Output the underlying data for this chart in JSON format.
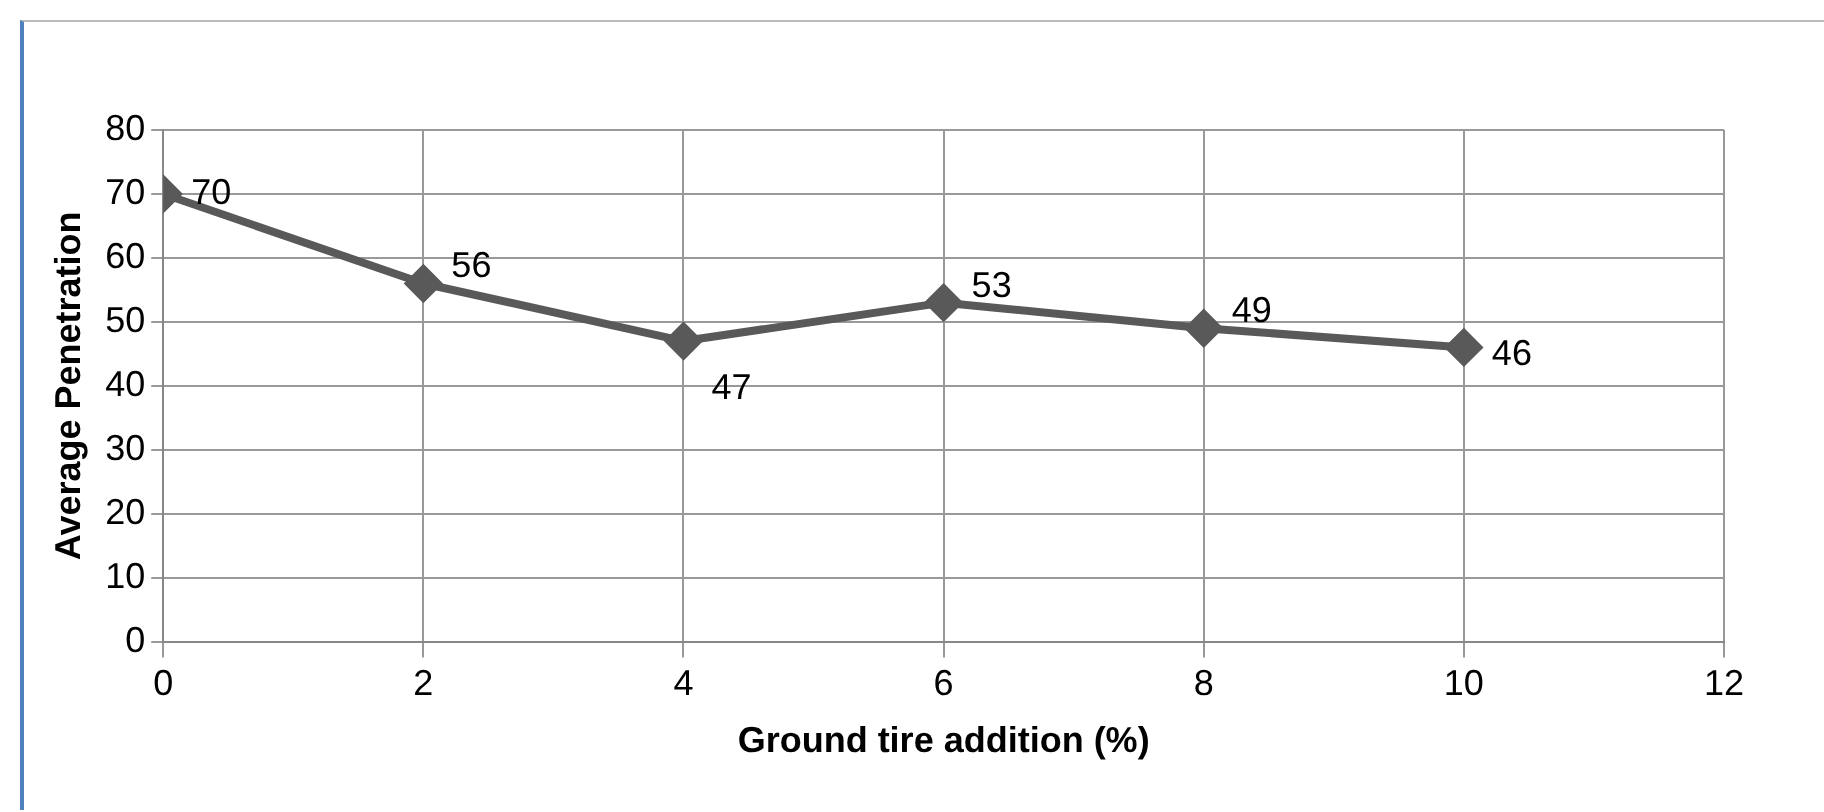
{
  "chart_data": {
    "type": "line",
    "xlabel": "Ground tire addition (%)",
    "ylabel": "Average Penetration",
    "x": [
      0,
      2,
      4,
      6,
      8,
      10
    ],
    "series": [
      {
        "color": "#595959",
        "values": [
          70,
          56,
          47,
          53,
          49,
          46
        ]
      }
    ],
    "xlim": [
      0,
      12
    ],
    "xticks": [
      0,
      2,
      4,
      6,
      8,
      10,
      12
    ],
    "ylim": [
      0,
      80
    ],
    "yticks": [
      0,
      10,
      20,
      30,
      40,
      50,
      60,
      70,
      80
    ],
    "grid": true,
    "marker": "diamond",
    "line_style": "solid",
    "data_labels": true,
    "legend": false
  }
}
